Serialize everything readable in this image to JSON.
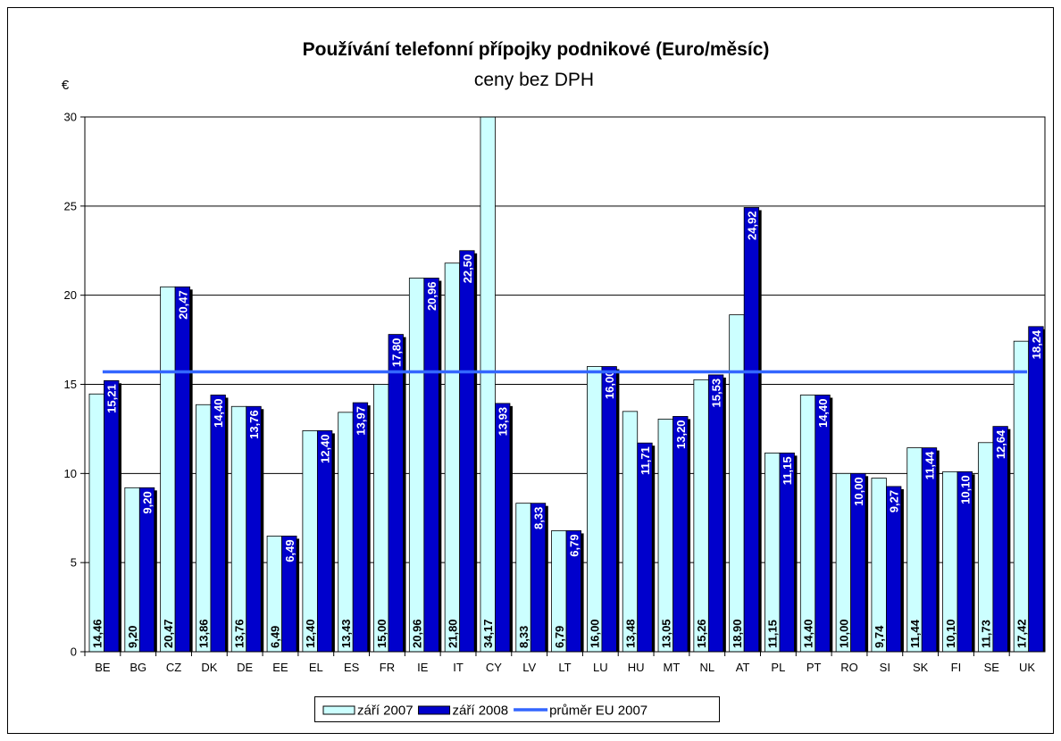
{
  "chart_data": {
    "type": "bar",
    "title": "Používání telefonní přípojky podnikové (Euro/měsíc)",
    "subtitle": "ceny bez DPH",
    "y_label": "€",
    "categories": [
      "BE",
      "BG",
      "CZ",
      "DK",
      "DE",
      "EE",
      "EL",
      "ES",
      "FR",
      "IE",
      "IT",
      "CY",
      "LV",
      "LT",
      "LU",
      "HU",
      "MT",
      "NL",
      "AT",
      "PL",
      "PT",
      "RO",
      "SI",
      "SK",
      "FI",
      "SE",
      "UK"
    ],
    "series": [
      {
        "name": "září 2007",
        "color": "#ccffff",
        "type": "bar",
        "values": [
          14.46,
          9.2,
          20.47,
          13.86,
          13.76,
          6.49,
          12.4,
          13.43,
          15.0,
          20.96,
          21.8,
          34.17,
          8.33,
          6.79,
          16.0,
          13.48,
          13.05,
          15.26,
          18.9,
          11.15,
          14.4,
          10.0,
          9.74,
          11.44,
          10.1,
          11.73,
          17.42
        ],
        "value_labels": [
          "14,46",
          "9,20",
          "20,47",
          "13,86",
          "13,76",
          "6,49",
          "12,40",
          "13,43",
          "15,00",
          "20,96",
          "21,80",
          "34,17",
          "8,33",
          "6,79",
          "16,00",
          "13,48",
          "13,05",
          "15,26",
          "18,90",
          "11,15",
          "14,40",
          "10,00",
          "9,74",
          "11,44",
          "10,10",
          "11,73",
          "17,42"
        ]
      },
      {
        "name": "září 2008",
        "color": "#0000cc",
        "type": "bar",
        "values": [
          15.21,
          9.2,
          20.47,
          14.4,
          13.76,
          6.49,
          12.4,
          13.97,
          17.8,
          20.96,
          22.5,
          13.93,
          8.33,
          6.79,
          16.0,
          11.71,
          13.2,
          15.53,
          24.92,
          11.15,
          14.4,
          10.0,
          9.27,
          11.44,
          10.1,
          12.64,
          18.24
        ],
        "value_labels": [
          "15,21",
          "9,20",
          "20,47",
          "14,40",
          "13,76",
          "6,49",
          "12,40",
          "13,97",
          "17,80",
          "20,96",
          "22,50",
          "13,93",
          "8,33",
          "6,79",
          "16,00",
          "11,71",
          "13,20",
          "15,53",
          "24,92",
          "11,15",
          "14,40",
          "10,00",
          "9,27",
          "11,44",
          "10,10",
          "12,64",
          "18,24"
        ]
      },
      {
        "name": "průměr EU 2007",
        "color": "#3366ff",
        "type": "line",
        "values": [
          15.7,
          15.7,
          15.7,
          15.7,
          15.7,
          15.7,
          15.7,
          15.7,
          15.7,
          15.7,
          15.7,
          15.7,
          15.7,
          15.7,
          15.7,
          15.7,
          15.7,
          15.7,
          15.7,
          15.7,
          15.7,
          15.7,
          15.7,
          15.7,
          15.7,
          15.7,
          15.7
        ]
      }
    ],
    "ylim": [
      0,
      30
    ],
    "yticks": [
      0,
      5,
      10,
      15,
      20,
      25,
      30
    ],
    "grid": true,
    "legend": "bottom"
  }
}
